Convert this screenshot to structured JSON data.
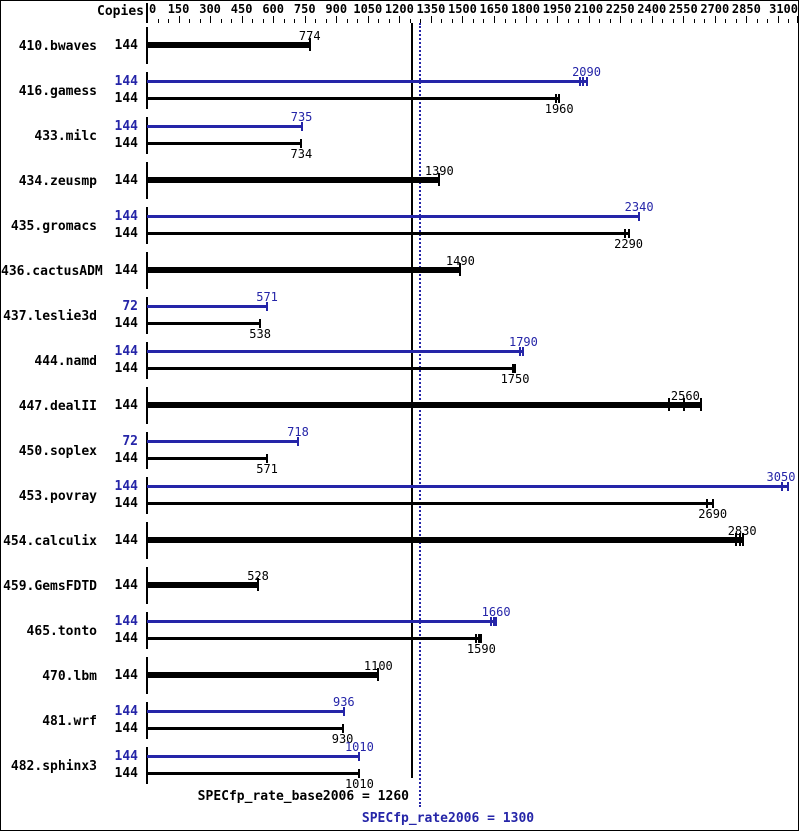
{
  "header": {
    "copies_label": "Copies"
  },
  "colors": {
    "peak": "#2525a8",
    "base": "#000000",
    "background": "#ffffff",
    "border": "#000000"
  },
  "footer": {
    "base_summary": "SPECfp_rate_base2006 = 1260",
    "peak_summary": "SPECfp_rate2006 = 1300"
  },
  "chart_data": {
    "type": "bar",
    "orientation": "horizontal",
    "title": "",
    "xlabel": "",
    "ylabel": "Copies",
    "axis": {
      "min": 0,
      "max": 3100,
      "minor_step": 50,
      "major_step": 150,
      "labels": [
        0,
        150,
        300,
        450,
        600,
        750,
        900,
        1050,
        1200,
        1350,
        1500,
        1650,
        1800,
        1950,
        2100,
        2250,
        2400,
        2550,
        2700,
        2850,
        3100
      ]
    },
    "reference_lines": [
      {
        "name": "base",
        "value": 1260,
        "style": "solid",
        "color": "#000000",
        "label": "SPECfp_rate_base2006 = 1260"
      },
      {
        "name": "peak",
        "value": 1300,
        "style": "dotted",
        "color": "#2525a8",
        "label": "SPECfp_rate2006 = 1300"
      }
    ],
    "benchmarks": [
      {
        "name": "410.bwaves",
        "bars": [
          {
            "series": "base",
            "copies": 144,
            "value": 774,
            "thick": true,
            "run_marks": [
              774
            ]
          }
        ]
      },
      {
        "name": "416.gamess",
        "bars": [
          {
            "series": "peak",
            "copies": 144,
            "value": 2090,
            "thick": false,
            "run_marks": [
              2060,
              2075,
              2090
            ]
          },
          {
            "series": "base",
            "copies": 144,
            "value": 1960,
            "thick": false,
            "run_marks": [
              1945,
              1960
            ]
          }
        ]
      },
      {
        "name": "433.milc",
        "bars": [
          {
            "series": "peak",
            "copies": 144,
            "value": 735,
            "thick": false,
            "run_marks": [
              735
            ]
          },
          {
            "series": "base",
            "copies": 144,
            "value": 734,
            "thick": false,
            "run_marks": [
              734
            ]
          }
        ]
      },
      {
        "name": "434.zeusmp",
        "bars": [
          {
            "series": "base",
            "copies": 144,
            "value": 1390,
            "thick": true,
            "run_marks": [
              1390
            ]
          }
        ]
      },
      {
        "name": "435.gromacs",
        "bars": [
          {
            "series": "peak",
            "copies": 144,
            "value": 2340,
            "thick": false,
            "run_marks": [
              2340
            ]
          },
          {
            "series": "base",
            "copies": 144,
            "value": 2290,
            "thick": false,
            "run_marks": [
              2275,
              2290
            ]
          }
        ]
      },
      {
        "name": "436.cactusADM",
        "bars": [
          {
            "series": "base",
            "copies": 144,
            "value": 1490,
            "thick": true,
            "run_marks": [
              1490
            ]
          }
        ]
      },
      {
        "name": "437.leslie3d",
        "bars": [
          {
            "series": "peak",
            "copies": 72,
            "value": 571,
            "thick": false,
            "run_marks": [
              571
            ]
          },
          {
            "series": "base",
            "copies": 144,
            "value": 538,
            "thick": false,
            "run_marks": [
              538
            ]
          }
        ]
      },
      {
        "name": "444.namd",
        "bars": [
          {
            "series": "peak",
            "copies": 144,
            "value": 1790,
            "thick": false,
            "run_marks": [
              1775,
              1790
            ]
          },
          {
            "series": "base",
            "copies": 144,
            "value": 1750,
            "thick": false,
            "run_marks": [
              1740,
              1750
            ]
          }
        ]
      },
      {
        "name": "447.dealII",
        "bars": [
          {
            "series": "base",
            "copies": 144,
            "value": 2560,
            "thick": true,
            "run_marks": [
              2480,
              2555,
              2635
            ]
          }
        ]
      },
      {
        "name": "450.soplex",
        "bars": [
          {
            "series": "peak",
            "copies": 72,
            "value": 718,
            "thick": false,
            "run_marks": [
              718
            ]
          },
          {
            "series": "base",
            "copies": 144,
            "value": 571,
            "thick": false,
            "run_marks": [
              571
            ]
          }
        ]
      },
      {
        "name": "453.povray",
        "bars": [
          {
            "series": "peak",
            "copies": 144,
            "value": 3050,
            "thick": false,
            "run_marks": [
              3020,
              3050
            ]
          },
          {
            "series": "base",
            "copies": 144,
            "value": 2690,
            "thick": false,
            "run_marks": [
              2665,
              2690
            ]
          }
        ]
      },
      {
        "name": "454.calculix",
        "bars": [
          {
            "series": "base",
            "copies": 144,
            "value": 2830,
            "thick": true,
            "run_marks": [
              2800,
              2820,
              2835
            ]
          }
        ]
      },
      {
        "name": "459.GemsFDTD",
        "bars": [
          {
            "series": "base",
            "copies": 144,
            "value": 528,
            "thick": true,
            "run_marks": [
              528
            ]
          }
        ]
      },
      {
        "name": "465.tonto",
        "bars": [
          {
            "series": "peak",
            "copies": 144,
            "value": 1660,
            "thick": false,
            "run_marks": [
              1635,
              1650,
              1660
            ]
          },
          {
            "series": "base",
            "copies": 144,
            "value": 1590,
            "thick": false,
            "run_marks": [
              1565,
              1580,
              1590
            ]
          }
        ]
      },
      {
        "name": "470.lbm",
        "bars": [
          {
            "series": "base",
            "copies": 144,
            "value": 1100,
            "thick": true,
            "run_marks": [
              1100
            ]
          }
        ]
      },
      {
        "name": "481.wrf",
        "bars": [
          {
            "series": "peak",
            "copies": 144,
            "value": 936,
            "thick": false,
            "run_marks": [
              936
            ]
          },
          {
            "series": "base",
            "copies": 144,
            "value": 930,
            "thick": false,
            "run_marks": [
              930
            ]
          }
        ]
      },
      {
        "name": "482.sphinx3",
        "bars": [
          {
            "series": "peak",
            "copies": 144,
            "value": 1010,
            "thick": false,
            "run_marks": [
              1010
            ]
          },
          {
            "series": "base",
            "copies": 144,
            "value": 1010,
            "thick": false,
            "run_marks": [
              1010
            ]
          }
        ]
      }
    ]
  }
}
